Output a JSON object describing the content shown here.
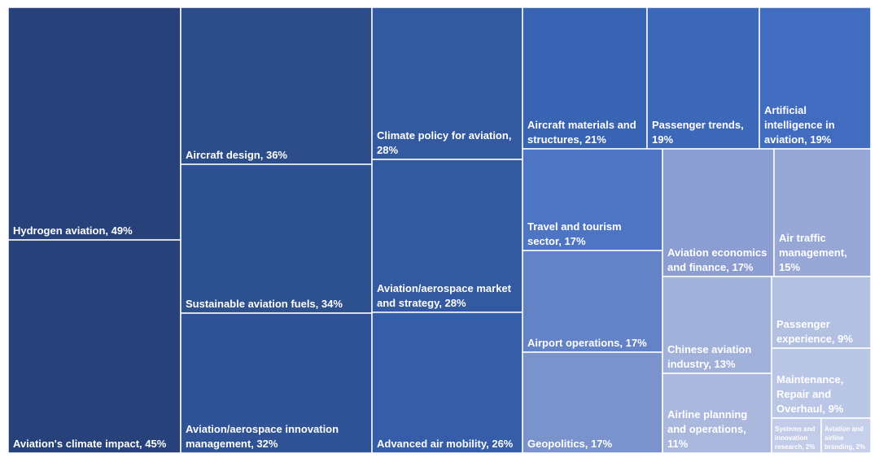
{
  "chart_data": {
    "type": "treemap",
    "title": "",
    "items": [
      {
        "label": "Hydrogen aviation, 49%",
        "name": "Hydrogen aviation",
        "value": 49,
        "color": "#27427A"
      },
      {
        "label": "Aviation's climate impact, 45%",
        "name": "Aviation's climate impact",
        "value": 45,
        "color": "#27427A"
      },
      {
        "label": "Aircraft design, 36%",
        "name": "Aircraft design",
        "value": 36,
        "color": "#2C4D8A"
      },
      {
        "label": "Sustainable aviation fuels, 34%",
        "name": "Sustainable aviation fuels",
        "value": 34,
        "color": "#2E518F"
      },
      {
        "label": "Aviation/aerospace innovation management, 32%",
        "name": "Aviation/aerospace innovation management",
        "value": 32,
        "color": "#2F5395"
      },
      {
        "label": "Climate policy for aviation, 28%",
        "name": "Climate policy for aviation",
        "value": 28,
        "color": "#3359A0"
      },
      {
        "label": "Aviation/aerospace market and strategy, 28%",
        "name": "Aviation/aerospace market and strategy",
        "value": 28,
        "color": "#3359A0"
      },
      {
        "label": "Advanced air mobility, 26%",
        "name": "Advanced air mobility",
        "value": 26,
        "color": "#355DA8"
      },
      {
        "label": "Aircraft materials and structures, 21%",
        "name": "Aircraft materials and structures",
        "value": 21,
        "color": "#3963B3"
      },
      {
        "label": "Passenger trends, 19%",
        "name": "Passenger trends",
        "value": 19,
        "color": "#3D68BA"
      },
      {
        "label": "Artificial intelligence in aviation, 19%",
        "name": "Artificial intelligence in aviation",
        "value": 19,
        "color": "#416CC0"
      },
      {
        "label": "Travel and tourism sector, 17%",
        "name": "Travel and tourism sector",
        "value": 17,
        "color": "#4D75C4"
      },
      {
        "label": "Airport operations, 17%",
        "name": "Airport operations",
        "value": 17,
        "color": "#6482C6"
      },
      {
        "label": "Geopolitics, 17%",
        "name": "Geopolitics",
        "value": 17,
        "color": "#7A93CC"
      },
      {
        "label": "Aviation economics and finance, 17%",
        "name": "Aviation economics and finance",
        "value": 17,
        "color": "#8C9DD2"
      },
      {
        "label": "Air traffic management, 15%",
        "name": "Air traffic management",
        "value": 15,
        "color": "#97A8D6"
      },
      {
        "label": "Chinese aviation industry, 13%",
        "name": "Chinese aviation industry",
        "value": 13,
        "color": "#A2B1DA"
      },
      {
        "label": "Airline planning and operations, 11%",
        "name": "Airline planning and operations",
        "value": 11,
        "color": "#AAB8DE"
      },
      {
        "label": "Passenger experience, 9%",
        "name": "Passenger experience",
        "value": 9,
        "color": "#B2C0E2"
      },
      {
        "label": "Maintenance, Repair and Overhaul, 9%",
        "name": "Maintenance, Repair and Overhaul",
        "value": 9,
        "color": "#BAC6E5"
      },
      {
        "label": "Systems and innovation research, 2%",
        "name": "Systems and innovation research",
        "value": 2,
        "color": "#C2CCE8"
      },
      {
        "label": "Aviation and airline branding, 2%",
        "name": "Aviation and airline branding",
        "value": 2,
        "color": "#C6D0EA"
      }
    ]
  }
}
